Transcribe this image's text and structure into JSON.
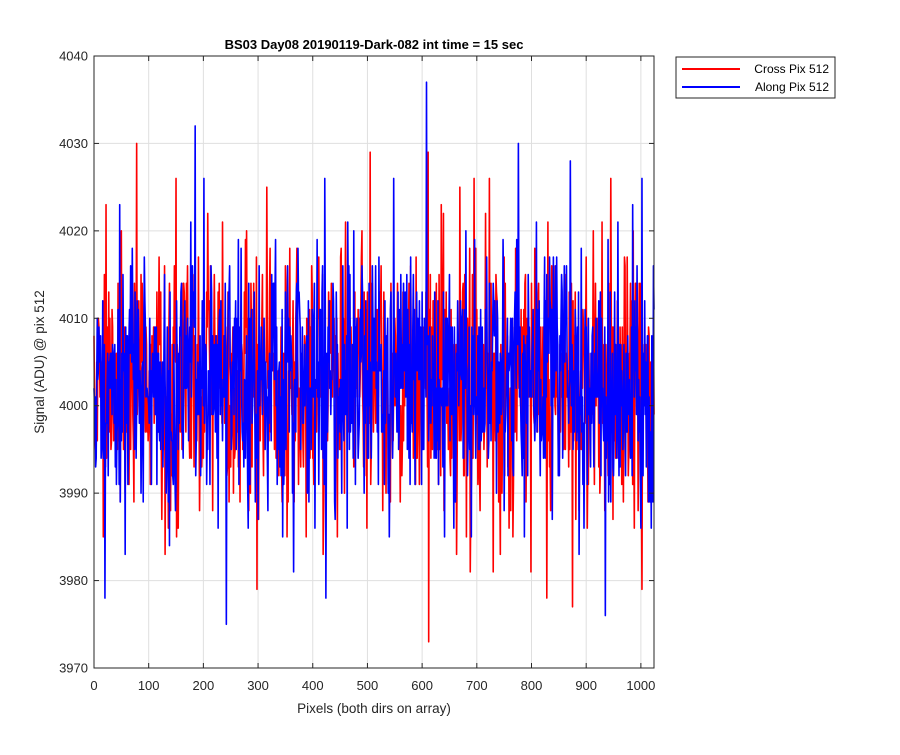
{
  "chart_data": {
    "type": "line",
    "title": "BS03 Day08 20190119-Dark-082 int time = 15 sec",
    "xlabel": "Pixels (both dirs on array)",
    "ylabel": "Signal (ADU) @ pix 512",
    "xlim": [
      0,
      1024
    ],
    "ylim": [
      3970,
      4040
    ],
    "xticks": [
      0,
      100,
      200,
      300,
      400,
      500,
      600,
      700,
      800,
      900,
      1000
    ],
    "yticks": [
      3970,
      3980,
      3990,
      4000,
      4010,
      4020,
      4030,
      4040
    ],
    "grid": true,
    "legend_position": "outside-top-right",
    "series": [
      {
        "name": "Cross Pix 512",
        "color": "#ff0000",
        "approx_mean": 4003,
        "points_per_unit_x": 1,
        "notable_points": [
          {
            "x": 78,
            "y": 4030
          },
          {
            "x": 505,
            "y": 4029
          },
          {
            "x": 611,
            "y": 4029
          },
          {
            "x": 612,
            "y": 3973
          },
          {
            "x": 875,
            "y": 3977
          },
          {
            "x": 828,
            "y": 3978
          },
          {
            "x": 1002,
            "y": 3979
          },
          {
            "x": 298,
            "y": 3979
          },
          {
            "x": 22,
            "y": 4023
          },
          {
            "x": 150,
            "y": 4026
          },
          {
            "x": 695,
            "y": 4026
          }
        ]
      },
      {
        "name": "Along Pix 512",
        "color": "#0000ff",
        "approx_mean": 4003,
        "points_per_unit_x": 1,
        "notable_points": [
          {
            "x": 608,
            "y": 4037
          },
          {
            "x": 185,
            "y": 4032
          },
          {
            "x": 776,
            "y": 4030
          },
          {
            "x": 871,
            "y": 4028
          },
          {
            "x": 242,
            "y": 3975
          },
          {
            "x": 20,
            "y": 3978
          },
          {
            "x": 424,
            "y": 3978
          },
          {
            "x": 935,
            "y": 3976
          },
          {
            "x": 422,
            "y": 4026
          },
          {
            "x": 47,
            "y": 4023
          }
        ]
      }
    ]
  }
}
